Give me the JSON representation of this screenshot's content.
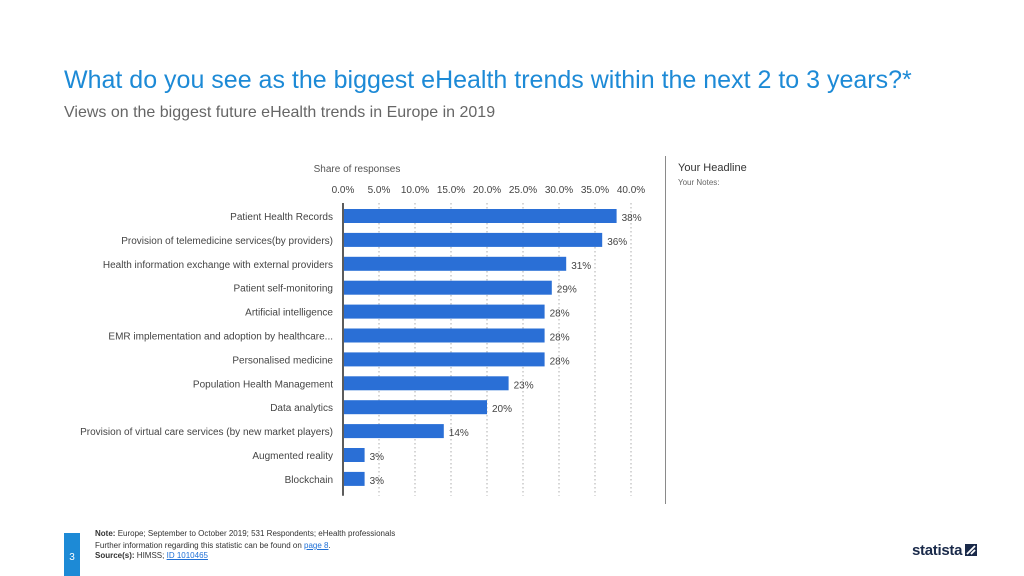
{
  "header": {
    "title": "What do you see as the biggest eHealth trends within the next 2 to 3 years?*",
    "subtitle": "Views on the biggest future eHealth trends in Europe in 2019"
  },
  "sidebar": {
    "headline": "Your Headline",
    "notes": "Your Notes:"
  },
  "footer": {
    "page_number": "3",
    "note_label": "Note:",
    "note_text": "Europe; September to October 2019; 531 Respondents; eHealth professionals",
    "further_text": "Further information regarding this statistic can be found on",
    "further_link": "page 8",
    "source_label": "Source(s):",
    "source_text": "HIMSS;",
    "source_link": "ID 1010465"
  },
  "brand": {
    "name": "statista",
    "accent": "#1d8ad6",
    "bar_color": "#2a6fd6",
    "logo_color": "#1a2a4a"
  },
  "chart_data": {
    "type": "bar",
    "orientation": "horizontal",
    "xlabel": "Share of responses",
    "xlim": [
      0,
      40
    ],
    "x_ticks": [
      "0.0%",
      "5.0%",
      "10.0%",
      "15.0%",
      "20.0%",
      "25.0%",
      "30.0%",
      "35.0%",
      "40.0%"
    ],
    "x_tick_values": [
      0,
      5,
      10,
      15,
      20,
      25,
      30,
      35,
      40
    ],
    "x_axis_position": "top",
    "grid": "vertical dotted",
    "categories": [
      "Patient Health Records",
      "Provision of telemedicine services(by providers)",
      "Health information exchange with external providers",
      "Patient self-monitoring",
      "Artificial intelligence",
      "EMR implementation and adoption by healthcare...",
      "Personalised medicine",
      "Population Health Management",
      "Data analytics",
      "Provision of virtual care services (by new market players)",
      "Augmented reality",
      "Blockchain"
    ],
    "values": [
      38,
      36,
      31,
      29,
      28,
      28,
      28,
      23,
      20,
      14,
      3,
      3
    ],
    "value_labels": [
      "38%",
      "36%",
      "31%",
      "29%",
      "28%",
      "28%",
      "28%",
      "23%",
      "20%",
      "14%",
      "3%",
      "3%"
    ]
  }
}
